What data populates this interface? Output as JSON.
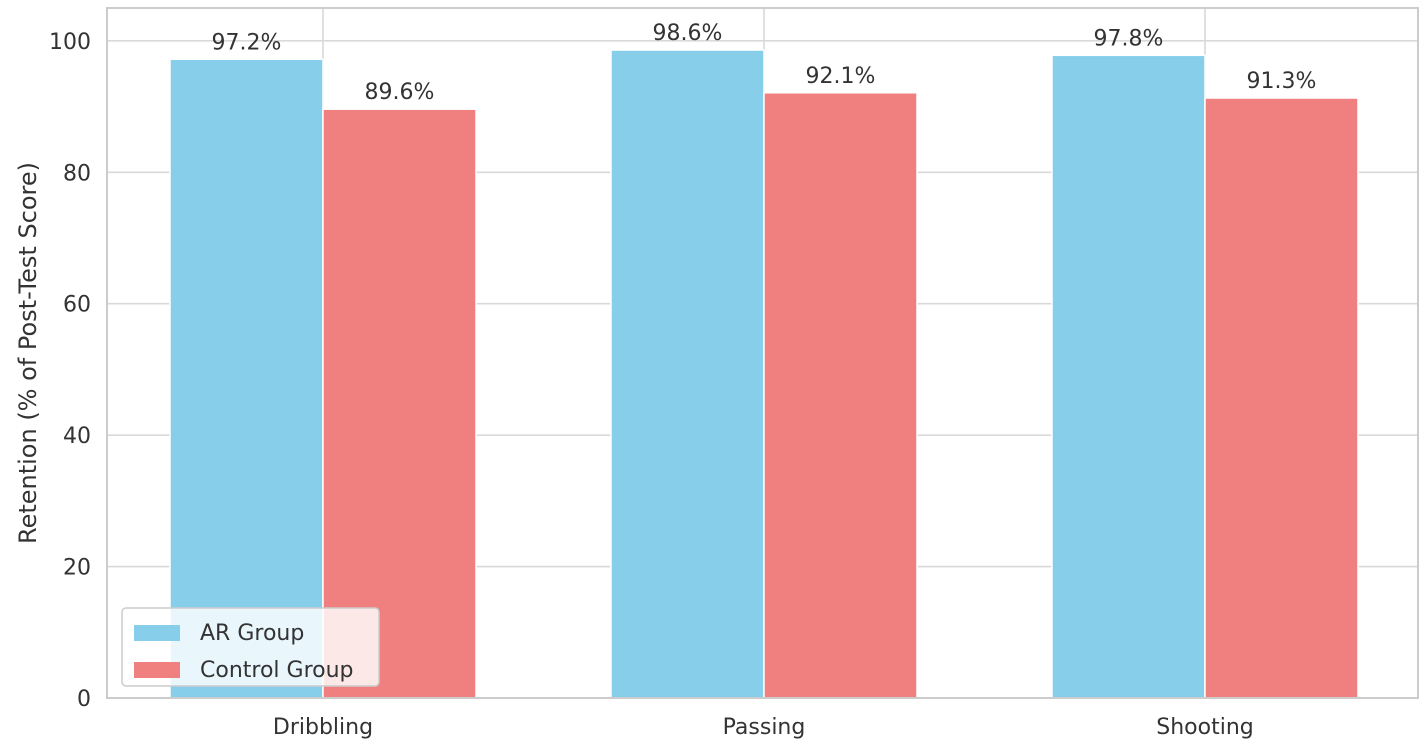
{
  "chart_data": {
    "type": "bar",
    "categories": [
      "Dribbling",
      "Passing",
      "Shooting"
    ],
    "series": [
      {
        "name": "AR Group",
        "values": [
          97.2,
          98.6,
          97.8
        ],
        "labels": [
          "97.2%",
          "98.6%",
          "97.8%"
        ],
        "color": "#87CEEB"
      },
      {
        "name": "Control Group",
        "values": [
          89.6,
          92.1,
          91.3
        ],
        "labels": [
          "89.6%",
          "92.1%",
          "91.3%"
        ],
        "color": "#F08080"
      }
    ],
    "title": "",
    "xlabel": "",
    "ylabel": "Retention (% of Post-Test Score)",
    "ylim": [
      0,
      105
    ],
    "yticks": [
      0,
      20,
      40,
      60,
      80,
      100
    ],
    "ytick_labels": [
      "0",
      "20",
      "40",
      "60",
      "80",
      "100"
    ],
    "grid": true,
    "legend_position": "lower-left",
    "grid_color": "#d9d9d9",
    "frame_color": "#cccccc"
  }
}
